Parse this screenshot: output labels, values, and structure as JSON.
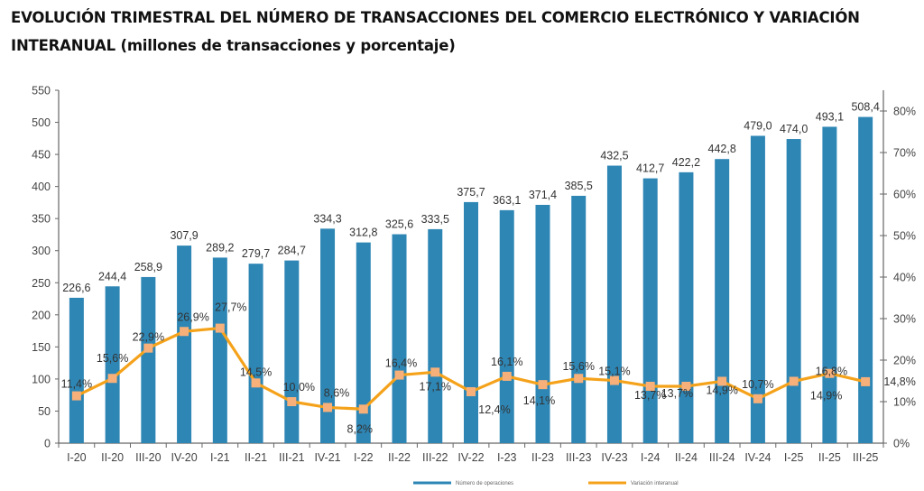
{
  "chart_data": {
    "type": "bar+line",
    "title_line1": "EVOLUCIÓN TRIMESTRAL DEL NÚMERO DE TRANSACCIONES DEL COMERCIO ELECTRÓNICO Y VARIACIÓN",
    "title_line2": "INTERANUAL (millones de transacciones y porcentaje)",
    "categories": [
      "I-20",
      "II-20",
      "III-20",
      "IV-20",
      "I-21",
      "II-21",
      "III-21",
      "IV-21",
      "I-22",
      "II-22",
      "III-22",
      "IV-22",
      "I-23",
      "II-23",
      "III-23",
      "IV-23",
      "I-24",
      "II-24",
      "III-24",
      "IV-24",
      "I-25",
      "II-25",
      "III-25"
    ],
    "series": [
      {
        "name": "Número de operaciones",
        "type": "bar",
        "axis": "left",
        "color": "#2e86b5",
        "values": [
          226.6,
          244.4,
          258.9,
          307.9,
          289.2,
          279.7,
          284.7,
          334.3,
          312.8,
          325.6,
          333.5,
          375.7,
          363.1,
          371.4,
          385.5,
          432.5,
          412.7,
          422.2,
          442.8,
          479.0,
          474.0,
          493.1,
          508.4
        ],
        "labels": [
          "226,6",
          "244,4",
          "258,9",
          "307,9",
          "289,2",
          "279,7",
          "284,7",
          "334,3",
          "312,8",
          "325,6",
          "333,5",
          "375,7",
          "363,1",
          "371,4",
          "385,5",
          "432,5",
          "412,7",
          "422,2",
          "442,8",
          "479,0",
          "474,0",
          "493,1",
          "508,4"
        ]
      },
      {
        "name": "Variación interanual",
        "type": "line",
        "axis": "right",
        "color": "#f5a21b",
        "marker_color": "#f8b07a",
        "values": [
          11.4,
          15.6,
          22.9,
          26.9,
          27.7,
          14.5,
          10.0,
          8.6,
          8.2,
          16.4,
          17.1,
          12.4,
          16.1,
          14.1,
          15.6,
          15.1,
          13.7,
          13.7,
          14.9,
          10.7,
          14.9,
          16.8,
          14.8
        ],
        "labels": [
          "11,4%",
          "15,6%",
          "22,9%",
          "26,9%",
          "27,7%",
          "14,5%",
          "10,0%",
          "8,6%",
          "8,2%",
          "16,4%",
          "17,1%",
          "12,4%",
          "16,1%",
          "14,1%",
          "15,6%",
          "15,1%",
          "13,7%",
          "13,7%",
          "14,9%",
          "10,7%",
          "14,9%",
          "16,8%",
          "14,8%"
        ]
      }
    ],
    "y_left": {
      "min": 0,
      "max": 550,
      "ticks": [
        "0",
        "50",
        "100",
        "150",
        "200",
        "250",
        "300",
        "350",
        "400",
        "450",
        "500",
        "550"
      ],
      "tick_values": [
        0,
        50,
        100,
        150,
        200,
        250,
        300,
        350,
        400,
        450,
        500,
        550
      ]
    },
    "y_right": {
      "min": 0,
      "max": 85,
      "ticks": [
        "0%",
        "10%",
        "20%",
        "30%",
        "40%",
        "50%",
        "60%",
        "70%",
        "80%"
      ],
      "tick_values": [
        0,
        10,
        20,
        30,
        40,
        50,
        60,
        70,
        80
      ]
    },
    "grid": false,
    "legend_position": "bottom-center"
  }
}
